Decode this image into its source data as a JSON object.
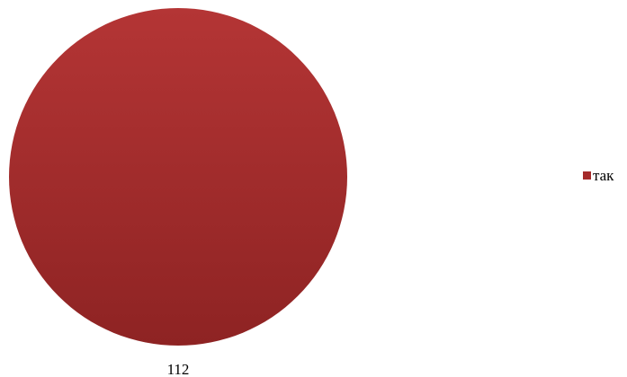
{
  "chart_data": {
    "type": "pie",
    "title": "",
    "categories": [
      "так"
    ],
    "values": [
      112
    ],
    "colors": [
      "#a52b2b"
    ],
    "data_labels": [
      "112"
    ],
    "legend": {
      "placement": "right",
      "entries": [
        "так"
      ]
    }
  }
}
